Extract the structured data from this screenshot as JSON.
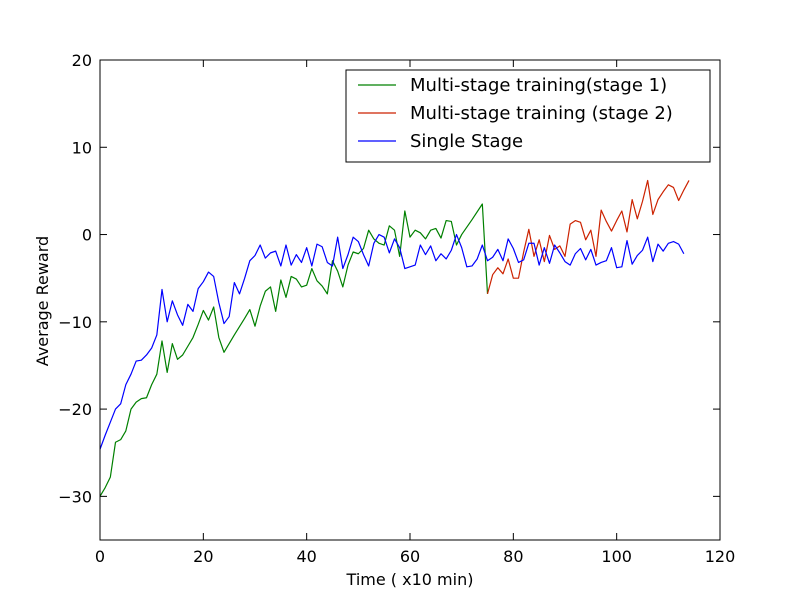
{
  "chart_data": {
    "type": "line",
    "xlabel": "Time ( x10 min)",
    "ylabel": "Average Reward",
    "xlim": [
      0,
      120
    ],
    "ylim": [
      -35,
      20
    ],
    "xticks": [
      0,
      20,
      40,
      60,
      80,
      100,
      120
    ],
    "yticks": [
      -30,
      -20,
      -10,
      0,
      10,
      20
    ],
    "grid": false,
    "legend_position": "upper right",
    "series": [
      {
        "name": "Multi-stage training(stage 1)",
        "color": "#008000",
        "points": [
          [
            0,
            -30
          ],
          [
            1,
            -29
          ],
          [
            2,
            -27.8
          ],
          [
            3,
            -23.8
          ],
          [
            4,
            -23.5
          ],
          [
            5,
            -22.5
          ],
          [
            6,
            -20
          ],
          [
            7,
            -19.2
          ],
          [
            8,
            -18.8
          ],
          [
            9,
            -18.7
          ],
          [
            10,
            -17.2
          ],
          [
            11,
            -16
          ],
          [
            12,
            -12.2
          ],
          [
            13,
            -15.8
          ],
          [
            14,
            -12.5
          ],
          [
            15,
            -14.3
          ],
          [
            16,
            -13.8
          ],
          [
            17,
            -12.8
          ],
          [
            18,
            -11.8
          ],
          [
            19,
            -10.3
          ],
          [
            20,
            -8.7
          ],
          [
            21,
            -9.8
          ],
          [
            22,
            -8.3
          ],
          [
            23,
            -11.8
          ],
          [
            24,
            -13.5
          ],
          [
            26,
            -11.5
          ],
          [
            28,
            -9.6
          ],
          [
            29,
            -8.6
          ],
          [
            30,
            -10.5
          ],
          [
            31,
            -8.2
          ],
          [
            32,
            -6.5
          ],
          [
            33,
            -6.0
          ],
          [
            34,
            -8.8
          ],
          [
            35,
            -5.2
          ],
          [
            36,
            -7.2
          ],
          [
            37,
            -4.8
          ],
          [
            38,
            -5.1
          ],
          [
            39,
            -6.0
          ],
          [
            40,
            -5.8
          ],
          [
            41,
            -3.9
          ],
          [
            42,
            -5.3
          ],
          [
            43,
            -5.9
          ],
          [
            44,
            -6.8
          ],
          [
            45,
            -3.0
          ],
          [
            46,
            -4.2
          ],
          [
            47,
            -6.0
          ],
          [
            48,
            -3.5
          ],
          [
            49,
            -2.0
          ],
          [
            50,
            -2.2
          ],
          [
            51,
            -1.6
          ],
          [
            52,
            0.5
          ],
          [
            53,
            -0.5
          ],
          [
            54,
            -1.0
          ],
          [
            55,
            -1.2
          ],
          [
            56,
            1.0
          ],
          [
            57,
            0.5
          ],
          [
            58,
            -2.5
          ],
          [
            59,
            2.7
          ],
          [
            60,
            -0.3
          ],
          [
            61,
            0.5
          ],
          [
            62,
            0.2
          ],
          [
            63,
            -0.5
          ],
          [
            64,
            0.5
          ],
          [
            65,
            0.7
          ],
          [
            66,
            -0.4
          ],
          [
            67,
            1.6
          ],
          [
            68,
            1.5
          ],
          [
            69,
            -1.2
          ],
          [
            70,
            0
          ],
          [
            72,
            1.7
          ],
          [
            74,
            3.5
          ],
          [
            75,
            -6.8
          ]
        ]
      },
      {
        "name": "Multi-stage training (stage 2)",
        "color": "#cc2200",
        "points": [
          [
            75,
            -6.8
          ],
          [
            76,
            -4.6
          ],
          [
            77,
            -3.8
          ],
          [
            78,
            -4.5
          ],
          [
            79,
            -2.8
          ],
          [
            80,
            -5.0
          ],
          [
            81,
            -5.0
          ],
          [
            82,
            -2.0
          ],
          [
            83,
            0.6
          ],
          [
            84,
            -2.5
          ],
          [
            85,
            -0.6
          ],
          [
            86,
            -3.1
          ],
          [
            87,
            -0.1
          ],
          [
            88,
            -1.7
          ],
          [
            89,
            -1.3
          ],
          [
            90,
            -2.5
          ],
          [
            91,
            1.2
          ],
          [
            92,
            1.6
          ],
          [
            93,
            1.4
          ],
          [
            94,
            -0.6
          ],
          [
            95,
            0.5
          ],
          [
            96,
            -2.5
          ],
          [
            97,
            2.8
          ],
          [
            98,
            1.5
          ],
          [
            99,
            0.4
          ],
          [
            100,
            1.6
          ],
          [
            101,
            2.7
          ],
          [
            102,
            0.3
          ],
          [
            103,
            4.0
          ],
          [
            104,
            1.8
          ],
          [
            105,
            3.8
          ],
          [
            106,
            6.2
          ],
          [
            107,
            2.3
          ],
          [
            108,
            4.0
          ],
          [
            109,
            4.9
          ],
          [
            110,
            5.7
          ],
          [
            111,
            5.4
          ],
          [
            112,
            3.9
          ],
          [
            113,
            5.1
          ],
          [
            114,
            6.2
          ]
        ]
      },
      {
        "name": "Single Stage",
        "color": "#0000ff",
        "points": [
          [
            0,
            -24.6
          ],
          [
            1,
            -23
          ],
          [
            2,
            -21.5
          ],
          [
            3,
            -20
          ],
          [
            4,
            -19.4
          ],
          [
            5,
            -17.2
          ],
          [
            6,
            -16
          ],
          [
            7,
            -14.5
          ],
          [
            8,
            -14.4
          ],
          [
            9,
            -13.8
          ],
          [
            10,
            -13
          ],
          [
            11,
            -11.5
          ],
          [
            12,
            -6.3
          ],
          [
            13,
            -10
          ],
          [
            14,
            -7.6
          ],
          [
            15,
            -9.2
          ],
          [
            16,
            -10.4
          ],
          [
            17,
            -8
          ],
          [
            18,
            -8.8
          ],
          [
            19,
            -6.2
          ],
          [
            20,
            -5.4
          ],
          [
            21,
            -4.3
          ],
          [
            22,
            -4.8
          ],
          [
            23,
            -7.8
          ],
          [
            24,
            -10.2
          ],
          [
            25,
            -9.4
          ],
          [
            26,
            -5.5
          ],
          [
            27,
            -6.8
          ],
          [
            28,
            -5
          ],
          [
            29,
            -3
          ],
          [
            30,
            -2.4
          ],
          [
            31,
            -1.2
          ],
          [
            32,
            -2.7
          ],
          [
            33,
            -2.1
          ],
          [
            34,
            -1.9
          ],
          [
            35,
            -3.6
          ],
          [
            36,
            -1.2
          ],
          [
            37,
            -3.5
          ],
          [
            38,
            -2.3
          ],
          [
            39,
            -3.2
          ],
          [
            40,
            -1.5
          ],
          [
            41,
            -3.6
          ],
          [
            42,
            -1.1
          ],
          [
            43,
            -1.4
          ],
          [
            44,
            -3.2
          ],
          [
            45,
            -3.6
          ],
          [
            46,
            -0.3
          ],
          [
            47,
            -3.9
          ],
          [
            48,
            -2.3
          ],
          [
            49,
            -0.3
          ],
          [
            50,
            -0.8
          ],
          [
            51,
            -2.3
          ],
          [
            52,
            -3.6
          ],
          [
            53,
            -1
          ],
          [
            54,
            0
          ],
          [
            55,
            -0.3
          ],
          [
            56,
            -2.1
          ],
          [
            57,
            -0.5
          ],
          [
            58,
            -1.5
          ],
          [
            59,
            -3.9
          ],
          [
            60,
            -3.7
          ],
          [
            61,
            -3.5
          ],
          [
            62,
            -1.2
          ],
          [
            63,
            -2.3
          ],
          [
            64,
            -1.3
          ],
          [
            65,
            -3
          ],
          [
            66,
            -2.2
          ],
          [
            67,
            -2.8
          ],
          [
            68,
            -1.8
          ],
          [
            69,
            0
          ],
          [
            70,
            -1.5
          ],
          [
            71,
            -3.7
          ],
          [
            72,
            -3.6
          ],
          [
            73,
            -2.8
          ],
          [
            74,
            -1.2
          ],
          [
            75,
            -3.0
          ],
          [
            76,
            -2.6
          ],
          [
            77,
            -1.7
          ],
          [
            78,
            -3.0
          ],
          [
            79,
            -0.5
          ],
          [
            80,
            -1.6
          ],
          [
            81,
            -3.2
          ],
          [
            82,
            -2.9
          ],
          [
            83,
            -1.0
          ],
          [
            84,
            -1.0
          ],
          [
            85,
            -3.5
          ],
          [
            86,
            -1.5
          ],
          [
            87,
            -3.3
          ],
          [
            88,
            -1.2
          ],
          [
            89,
            -2.1
          ],
          [
            90,
            -3.1
          ],
          [
            91,
            -3.5
          ],
          [
            92,
            -2.2
          ],
          [
            93,
            -1.6
          ],
          [
            94,
            -2.9
          ],
          [
            95,
            -1.7
          ],
          [
            96,
            -3.5
          ],
          [
            97,
            -3.2
          ],
          [
            98,
            -3.0
          ],
          [
            99,
            -1.5
          ],
          [
            100,
            -3.8
          ],
          [
            101,
            -3.7
          ],
          [
            102,
            -0.7
          ],
          [
            103,
            -3.4
          ],
          [
            104,
            -2.4
          ],
          [
            105,
            -1.8
          ],
          [
            106,
            -0.3
          ],
          [
            107,
            -3.1
          ],
          [
            108,
            -1.1
          ],
          [
            109,
            -1.9
          ],
          [
            110,
            -1
          ],
          [
            111,
            -0.8
          ],
          [
            112,
            -1.1
          ],
          [
            113,
            -2.2
          ]
        ]
      }
    ]
  }
}
